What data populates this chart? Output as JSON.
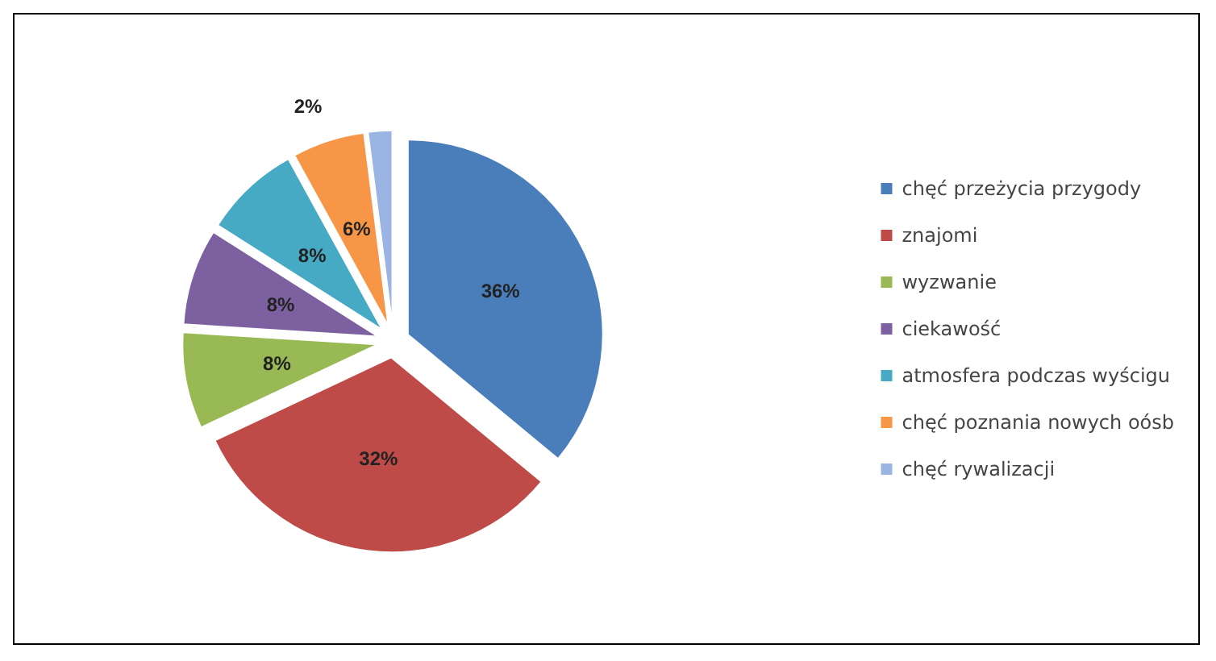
{
  "chart_data": {
    "type": "pie",
    "categories": [
      "chęć przeżycia przygody",
      "znajomi",
      "wyzwanie",
      "ciekawość",
      "atmosfera podczas wyścigu",
      "chęć poznania nowych oósb",
      "chęć rywalizacji"
    ],
    "values": [
      36,
      32,
      8,
      8,
      8,
      6,
      2
    ],
    "value_labels": [
      "36%",
      "32%",
      "8%",
      "8%",
      "8%",
      "6%",
      "2%"
    ],
    "colors": [
      "#4a7ebb",
      "#be4b48",
      "#98b954",
      "#7d60a0",
      "#46aac5",
      "#f79646",
      "#9ab5e4"
    ],
    "legend": "right"
  }
}
